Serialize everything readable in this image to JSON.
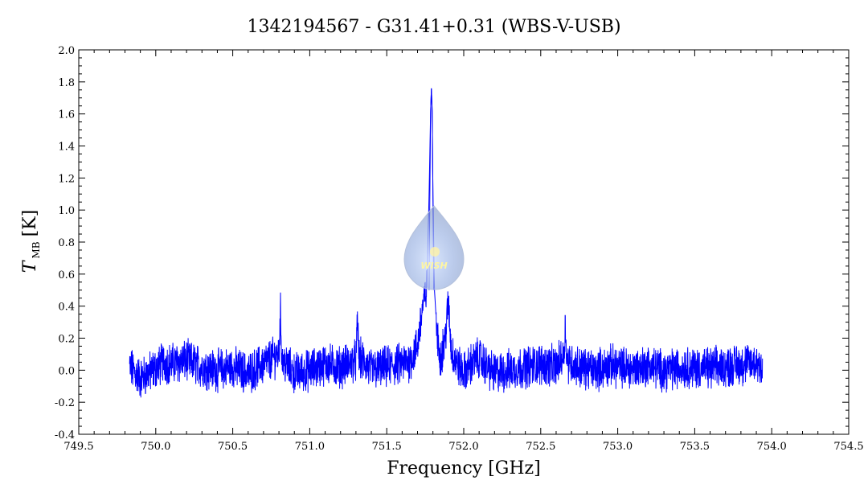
{
  "chart_data": {
    "type": "line",
    "title": "1342194567 - G31.41+0.31 (WBS-V-USB)",
    "xlabel": "Frequency [GHz]",
    "ylabel_main": "T",
    "ylabel_sub": "MB",
    "ylabel_unit": "[K]",
    "xlim": [
      749.5,
      754.5
    ],
    "ylim": [
      -0.4,
      2.0
    ],
    "x_ticks": [
      "749.5",
      "750.0",
      "750.5",
      "751.0",
      "751.5",
      "752.0",
      "752.5",
      "753.0",
      "753.5",
      "754.0",
      "754.5"
    ],
    "y_ticks": [
      "-0.4",
      "-0.2",
      "0.0",
      "0.2",
      "0.4",
      "0.6",
      "0.8",
      "1.0",
      "1.2",
      "1.4",
      "1.6",
      "1.8",
      "2.0"
    ],
    "grid": false,
    "series": [
      {
        "color": "#0000ff",
        "points": [
          [
            749.83,
            0.02
          ],
          [
            749.9,
            -0.05
          ],
          [
            750.0,
            0.01
          ],
          [
            750.05,
            0.05
          ],
          [
            750.1,
            0.04
          ],
          [
            750.2,
            0.06
          ],
          [
            750.3,
            0.02
          ],
          [
            750.4,
            0.0
          ],
          [
            750.5,
            0.02
          ],
          [
            750.6,
            -0.02
          ],
          [
            750.7,
            0.04
          ],
          [
            750.8,
            0.1
          ],
          [
            750.81,
            0.35
          ],
          [
            750.82,
            0.06
          ],
          [
            750.9,
            -0.02
          ],
          [
            751.0,
            0.0
          ],
          [
            751.1,
            0.04
          ],
          [
            751.2,
            0.02
          ],
          [
            751.3,
            0.06
          ],
          [
            751.31,
            0.3
          ],
          [
            751.32,
            0.08
          ],
          [
            751.4,
            0.0
          ],
          [
            751.5,
            0.02
          ],
          [
            751.6,
            0.04
          ],
          [
            751.65,
            0.06
          ],
          [
            751.7,
            0.15
          ],
          [
            751.73,
            0.38
          ],
          [
            751.76,
            0.5
          ],
          [
            751.775,
            1.1
          ],
          [
            751.785,
            1.62
          ],
          [
            751.79,
            1.76
          ],
          [
            751.795,
            1.62
          ],
          [
            751.8,
            1.1
          ],
          [
            751.81,
            0.5
          ],
          [
            751.83,
            0.18
          ],
          [
            751.85,
            0.08
          ],
          [
            751.88,
            0.2
          ],
          [
            751.9,
            0.42
          ],
          [
            751.92,
            0.12
          ],
          [
            751.95,
            0.05
          ],
          [
            752.0,
            -0.02
          ],
          [
            752.05,
            0.04
          ],
          [
            752.1,
            0.08
          ],
          [
            752.15,
            0.02
          ],
          [
            752.2,
            -0.02
          ],
          [
            752.3,
            0.0
          ],
          [
            752.4,
            0.02
          ],
          [
            752.5,
            0.04
          ],
          [
            752.6,
            0.02
          ],
          [
            752.65,
            0.1
          ],
          [
            752.66,
            0.28
          ],
          [
            752.67,
            0.06
          ],
          [
            752.75,
            0.02
          ],
          [
            752.85,
            0.0
          ],
          [
            752.95,
            0.03
          ],
          [
            753.1,
            0.01
          ],
          [
            753.2,
            0.03
          ],
          [
            753.3,
            0.0
          ],
          [
            753.45,
            0.02
          ],
          [
            753.6,
            0.01
          ],
          [
            753.75,
            0.03
          ],
          [
            753.85,
            0.04
          ],
          [
            753.9,
            0.05
          ],
          [
            753.94,
            0.02
          ]
        ]
      }
    ],
    "watermark": "WISH"
  }
}
